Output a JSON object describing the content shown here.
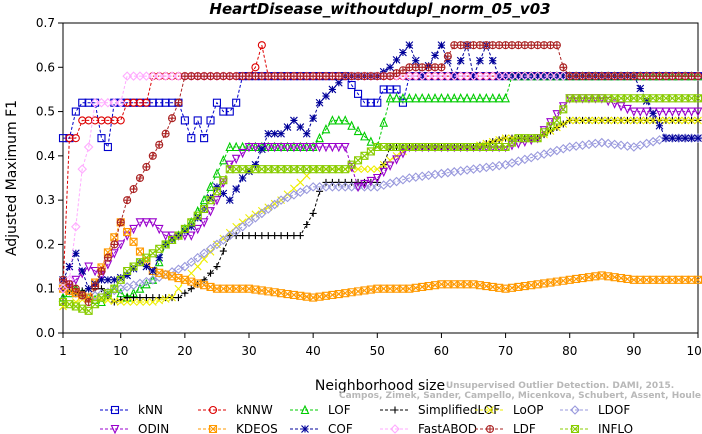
{
  "chart_data": {
    "type": "line",
    "title": "HeartDisease_withoutdupl_norm_05_v03",
    "xlabel": "Neighborhood size",
    "ylabel": "Adjusted Maximum F1",
    "xlim": [
      1,
      100
    ],
    "ylim": [
      0,
      0.7
    ],
    "xticks": [
      1,
      10,
      20,
      30,
      40,
      50,
      60,
      70,
      80,
      90,
      100
    ],
    "yticks": [
      0.0,
      0.1,
      0.2,
      0.3,
      0.4,
      0.5,
      0.6,
      0.7
    ],
    "ytick_labels": [
      "0.0",
      "0.1",
      "0.2",
      "0.3",
      "0.4",
      "0.5",
      "0.6",
      "0.7"
    ],
    "grid": false,
    "legend_position": "bottom",
    "watermark": [
      "Campos, Zimek, Sander, Campello, Micenkova, Schubert, Assent, Houle",
      "Unsupervised Outlier Detection. DAMI, 2015."
    ],
    "series": [
      {
        "name": "kNN",
        "color": "#0000cc",
        "marker": "square",
        "x": [
          1,
          2,
          3,
          4,
          5,
          6,
          7,
          8,
          9,
          10,
          11,
          12,
          13,
          14,
          15,
          16,
          17,
          18,
          19,
          20,
          21,
          22,
          23,
          24,
          25,
          26,
          27,
          28,
          29,
          30,
          35,
          40,
          45,
          48,
          50,
          51,
          52,
          53,
          54,
          55,
          60,
          65,
          70,
          75,
          80,
          85,
          90,
          95,
          100
        ],
        "y": [
          0.44,
          0.44,
          0.5,
          0.52,
          0.52,
          0.52,
          0.44,
          0.42,
          0.52,
          0.52,
          0.52,
          0.52,
          0.52,
          0.52,
          0.52,
          0.52,
          0.52,
          0.52,
          0.52,
          0.48,
          0.44,
          0.48,
          0.44,
          0.48,
          0.52,
          0.5,
          0.5,
          0.52,
          0.58,
          0.58,
          0.58,
          0.58,
          0.58,
          0.52,
          0.52,
          0.55,
          0.55,
          0.55,
          0.52,
          0.58,
          0.58,
          0.58,
          0.58,
          0.58,
          0.58,
          0.58,
          0.58,
          0.58,
          0.58
        ]
      },
      {
        "name": "kNNW",
        "color": "#dd0000",
        "marker": "circle",
        "x": [
          1,
          2,
          3,
          4,
          5,
          6,
          7,
          8,
          9,
          10,
          11,
          12,
          13,
          14,
          15,
          20,
          25,
          30,
          31,
          32,
          33,
          34,
          35,
          40,
          50,
          55,
          60,
          65,
          70,
          75,
          80,
          90,
          100
        ],
        "y": [
          0.1,
          0.44,
          0.44,
          0.48,
          0.48,
          0.48,
          0.48,
          0.48,
          0.48,
          0.48,
          0.52,
          0.52,
          0.52,
          0.52,
          0.58,
          0.58,
          0.58,
          0.58,
          0.6,
          0.65,
          0.58,
          0.58,
          0.58,
          0.58,
          0.58,
          0.58,
          0.58,
          0.58,
          0.58,
          0.58,
          0.58,
          0.58,
          0.58
        ]
      },
      {
        "name": "LOF",
        "color": "#00cc00",
        "marker": "triangle",
        "x": [
          1,
          3,
          5,
          7,
          9,
          11,
          13,
          15,
          17,
          19,
          21,
          23,
          25,
          27,
          30,
          35,
          40,
          43,
          45,
          50,
          52,
          55,
          60,
          65,
          70,
          71,
          75,
          80,
          85,
          90,
          95,
          100
        ],
        "y": [
          0.08,
          0.1,
          0.08,
          0.07,
          0.1,
          0.08,
          0.1,
          0.12,
          0.2,
          0.22,
          0.25,
          0.3,
          0.36,
          0.42,
          0.42,
          0.42,
          0.42,
          0.48,
          0.48,
          0.42,
          0.53,
          0.53,
          0.53,
          0.53,
          0.53,
          0.58,
          0.58,
          0.58,
          0.58,
          0.58,
          0.58,
          0.58
        ]
      },
      {
        "name": "SimplifiedLOF",
        "color": "#000000",
        "marker": "plus",
        "x": [
          1,
          3,
          5,
          7,
          9,
          11,
          13,
          15,
          17,
          19,
          21,
          23,
          25,
          27,
          30,
          35,
          38,
          40,
          41,
          42,
          45,
          50,
          52,
          55,
          60,
          65,
          70,
          75,
          80,
          85,
          90,
          95,
          100
        ],
        "y": [
          0.1,
          0.09,
          0.1,
          0.1,
          0.07,
          0.08,
          0.08,
          0.08,
          0.08,
          0.08,
          0.1,
          0.12,
          0.15,
          0.22,
          0.22,
          0.22,
          0.22,
          0.27,
          0.32,
          0.34,
          0.34,
          0.34,
          0.42,
          0.42,
          0.42,
          0.42,
          0.44,
          0.44,
          0.48,
          0.48,
          0.48,
          0.48,
          0.48
        ]
      },
      {
        "name": "LoOP",
        "color": "#eeee00",
        "marker": "cross",
        "x": [
          1,
          5,
          10,
          15,
          18,
          20,
          22,
          25,
          28,
          30,
          35,
          38,
          40,
          42,
          45,
          50,
          55,
          60,
          65,
          70,
          72,
          75,
          80,
          85,
          90,
          95,
          100
        ],
        "y": [
          0.06,
          0.08,
          0.07,
          0.07,
          0.08,
          0.12,
          0.15,
          0.2,
          0.24,
          0.26,
          0.3,
          0.34,
          0.37,
          0.37,
          0.37,
          0.37,
          0.42,
          0.42,
          0.42,
          0.44,
          0.44,
          0.44,
          0.48,
          0.48,
          0.48,
          0.48,
          0.48
        ]
      },
      {
        "name": "LDOF",
        "color": "#9999dd",
        "marker": "diamond",
        "x": [
          1,
          5,
          10,
          15,
          20,
          25,
          30,
          35,
          40,
          45,
          50,
          55,
          60,
          65,
          70,
          75,
          80,
          85,
          90,
          95,
          100
        ],
        "y": [
          0.1,
          0.08,
          0.1,
          0.12,
          0.15,
          0.2,
          0.25,
          0.3,
          0.33,
          0.33,
          0.33,
          0.35,
          0.36,
          0.37,
          0.38,
          0.4,
          0.42,
          0.43,
          0.42,
          0.44,
          0.44
        ]
      },
      {
        "name": "ODIN",
        "color": "#9900cc",
        "marker": "triangle-down",
        "x": [
          1,
          3,
          5,
          7,
          9,
          11,
          13,
          15,
          17,
          19,
          21,
          23,
          25,
          27,
          30,
          35,
          40,
          45,
          47,
          50,
          55,
          60,
          65,
          70,
          75,
          80,
          85,
          90,
          95,
          100
        ],
        "y": [
          0.1,
          0.12,
          0.15,
          0.13,
          0.18,
          0.22,
          0.25,
          0.25,
          0.22,
          0.22,
          0.22,
          0.25,
          0.3,
          0.38,
          0.42,
          0.42,
          0.42,
          0.42,
          0.33,
          0.35,
          0.42,
          0.42,
          0.42,
          0.42,
          0.44,
          0.53,
          0.53,
          0.5,
          0.5,
          0.5
        ]
      },
      {
        "name": "KDEOS",
        "color": "#ff9900",
        "marker": "square-x",
        "x": [
          1,
          5,
          10,
          15,
          20,
          25,
          30,
          35,
          40,
          45,
          50,
          55,
          60,
          65,
          70,
          75,
          80,
          85,
          90,
          95,
          100
        ],
        "y": [
          0.1,
          0.08,
          0.25,
          0.14,
          0.12,
          0.1,
          0.1,
          0.09,
          0.08,
          0.09,
          0.1,
          0.1,
          0.11,
          0.11,
          0.1,
          0.11,
          0.12,
          0.13,
          0.12,
          0.12,
          0.12
        ]
      },
      {
        "name": "COF",
        "color": "#000099",
        "marker": "star",
        "x": [
          1,
          3,
          5,
          7,
          9,
          11,
          13,
          15,
          17,
          19,
          21,
          23,
          25,
          27,
          29,
          31,
          33,
          35,
          37,
          39,
          41,
          43,
          45,
          50,
          52,
          55,
          57,
          60,
          62,
          64,
          65,
          67,
          69,
          70,
          72,
          75,
          80,
          85,
          90,
          95,
          100
        ],
        "y": [
          0.12,
          0.18,
          0.1,
          0.12,
          0.12,
          0.13,
          0.16,
          0.14,
          0.2,
          0.22,
          0.24,
          0.28,
          0.33,
          0.3,
          0.35,
          0.38,
          0.45,
          0.45,
          0.48,
          0.45,
          0.52,
          0.55,
          0.58,
          0.58,
          0.6,
          0.65,
          0.58,
          0.65,
          0.58,
          0.65,
          0.58,
          0.65,
          0.58,
          0.58,
          0.58,
          0.58,
          0.58,
          0.58,
          0.58,
          0.44,
          0.44
        ]
      },
      {
        "name": "FastABOD",
        "color": "#ffaaff",
        "marker": "diamond",
        "x": [
          1,
          2,
          3,
          4,
          5,
          6,
          7,
          8,
          9,
          10,
          11,
          12,
          13,
          14,
          15,
          20,
          25,
          30,
          40,
          50,
          60,
          70,
          80,
          90,
          100
        ],
        "y": [
          0.1,
          0.12,
          0.24,
          0.37,
          0.42,
          0.52,
          0.52,
          0.52,
          0.52,
          0.52,
          0.58,
          0.58,
          0.58,
          0.58,
          0.58,
          0.58,
          0.58,
          0.58,
          0.58,
          0.58,
          0.58,
          0.58,
          0.58,
          0.58,
          0.58
        ]
      },
      {
        "name": "LDF",
        "color": "#aa2222",
        "marker": "circle-plus",
        "x": [
          1,
          3,
          5,
          7,
          9,
          11,
          13,
          15,
          17,
          19,
          20,
          25,
          30,
          35,
          40,
          45,
          50,
          52,
          55,
          58,
          60,
          62,
          64,
          65,
          70,
          75,
          78,
          79,
          80,
          85,
          90,
          95,
          100
        ],
        "y": [
          0.12,
          0.1,
          0.07,
          0.14,
          0.2,
          0.3,
          0.35,
          0.4,
          0.45,
          0.52,
          0.58,
          0.58,
          0.58,
          0.58,
          0.58,
          0.58,
          0.58,
          0.58,
          0.6,
          0.6,
          0.6,
          0.65,
          0.65,
          0.65,
          0.65,
          0.65,
          0.65,
          0.6,
          0.58,
          0.58,
          0.58,
          0.58,
          0.58
        ]
      },
      {
        "name": "INFLO",
        "color": "#88cc00",
        "marker": "square-x",
        "x": [
          1,
          3,
          5,
          7,
          9,
          11,
          13,
          15,
          17,
          19,
          21,
          23,
          25,
          27,
          30,
          35,
          40,
          45,
          50,
          55,
          60,
          65,
          70,
          72,
          75,
          78,
          80,
          85,
          90,
          95,
          98,
          100
        ],
        "y": [
          0.07,
          0.06,
          0.05,
          0.08,
          0.1,
          0.14,
          0.16,
          0.18,
          0.2,
          0.22,
          0.25,
          0.28,
          0.32,
          0.37,
          0.37,
          0.37,
          0.37,
          0.37,
          0.42,
          0.42,
          0.42,
          0.42,
          0.42,
          0.44,
          0.44,
          0.48,
          0.53,
          0.53,
          0.53,
          0.53,
          0.53,
          0.53
        ]
      }
    ]
  }
}
